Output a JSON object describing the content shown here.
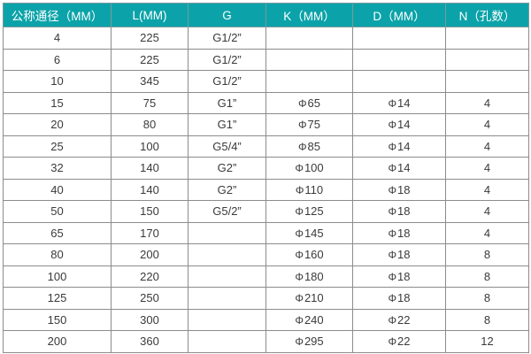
{
  "header_color": "#0ba3a9",
  "columns": [
    "公称通径（MM）",
    "L(MM)",
    "G",
    "K（MM）",
    "D（MM）",
    "N（孔数）"
  ],
  "rows": [
    [
      "4",
      "225",
      "G1/2”",
      "",
      "",
      ""
    ],
    [
      "6",
      "225",
      "G1/2”",
      "",
      "",
      ""
    ],
    [
      "10",
      "345",
      "G1/2”",
      "",
      "",
      ""
    ],
    [
      "15",
      "75",
      "G1”",
      "65",
      "14",
      "4"
    ],
    [
      "20",
      "80",
      "G1”",
      "75",
      "14",
      "4"
    ],
    [
      "25",
      "100",
      "G5/4”",
      "85",
      "14",
      "4"
    ],
    [
      "32",
      "140",
      "G2”",
      "100",
      "14",
      "4"
    ],
    [
      "40",
      "140",
      "G2”",
      "110",
      "18",
      "4"
    ],
    [
      "50",
      "150",
      "G5/2”",
      "125",
      "18",
      "4"
    ],
    [
      "65",
      "170",
      "",
      "145",
      "18",
      "4"
    ],
    [
      "80",
      "200",
      "",
      "160",
      "18",
      "8"
    ],
    [
      "100",
      "220",
      "",
      "180",
      "18",
      "8"
    ],
    [
      "125",
      "250",
      "",
      "210",
      "18",
      "8"
    ],
    [
      "150",
      "300",
      "",
      "240",
      "22",
      "8"
    ],
    [
      "200",
      "360",
      "",
      "295",
      "22",
      "12"
    ]
  ]
}
